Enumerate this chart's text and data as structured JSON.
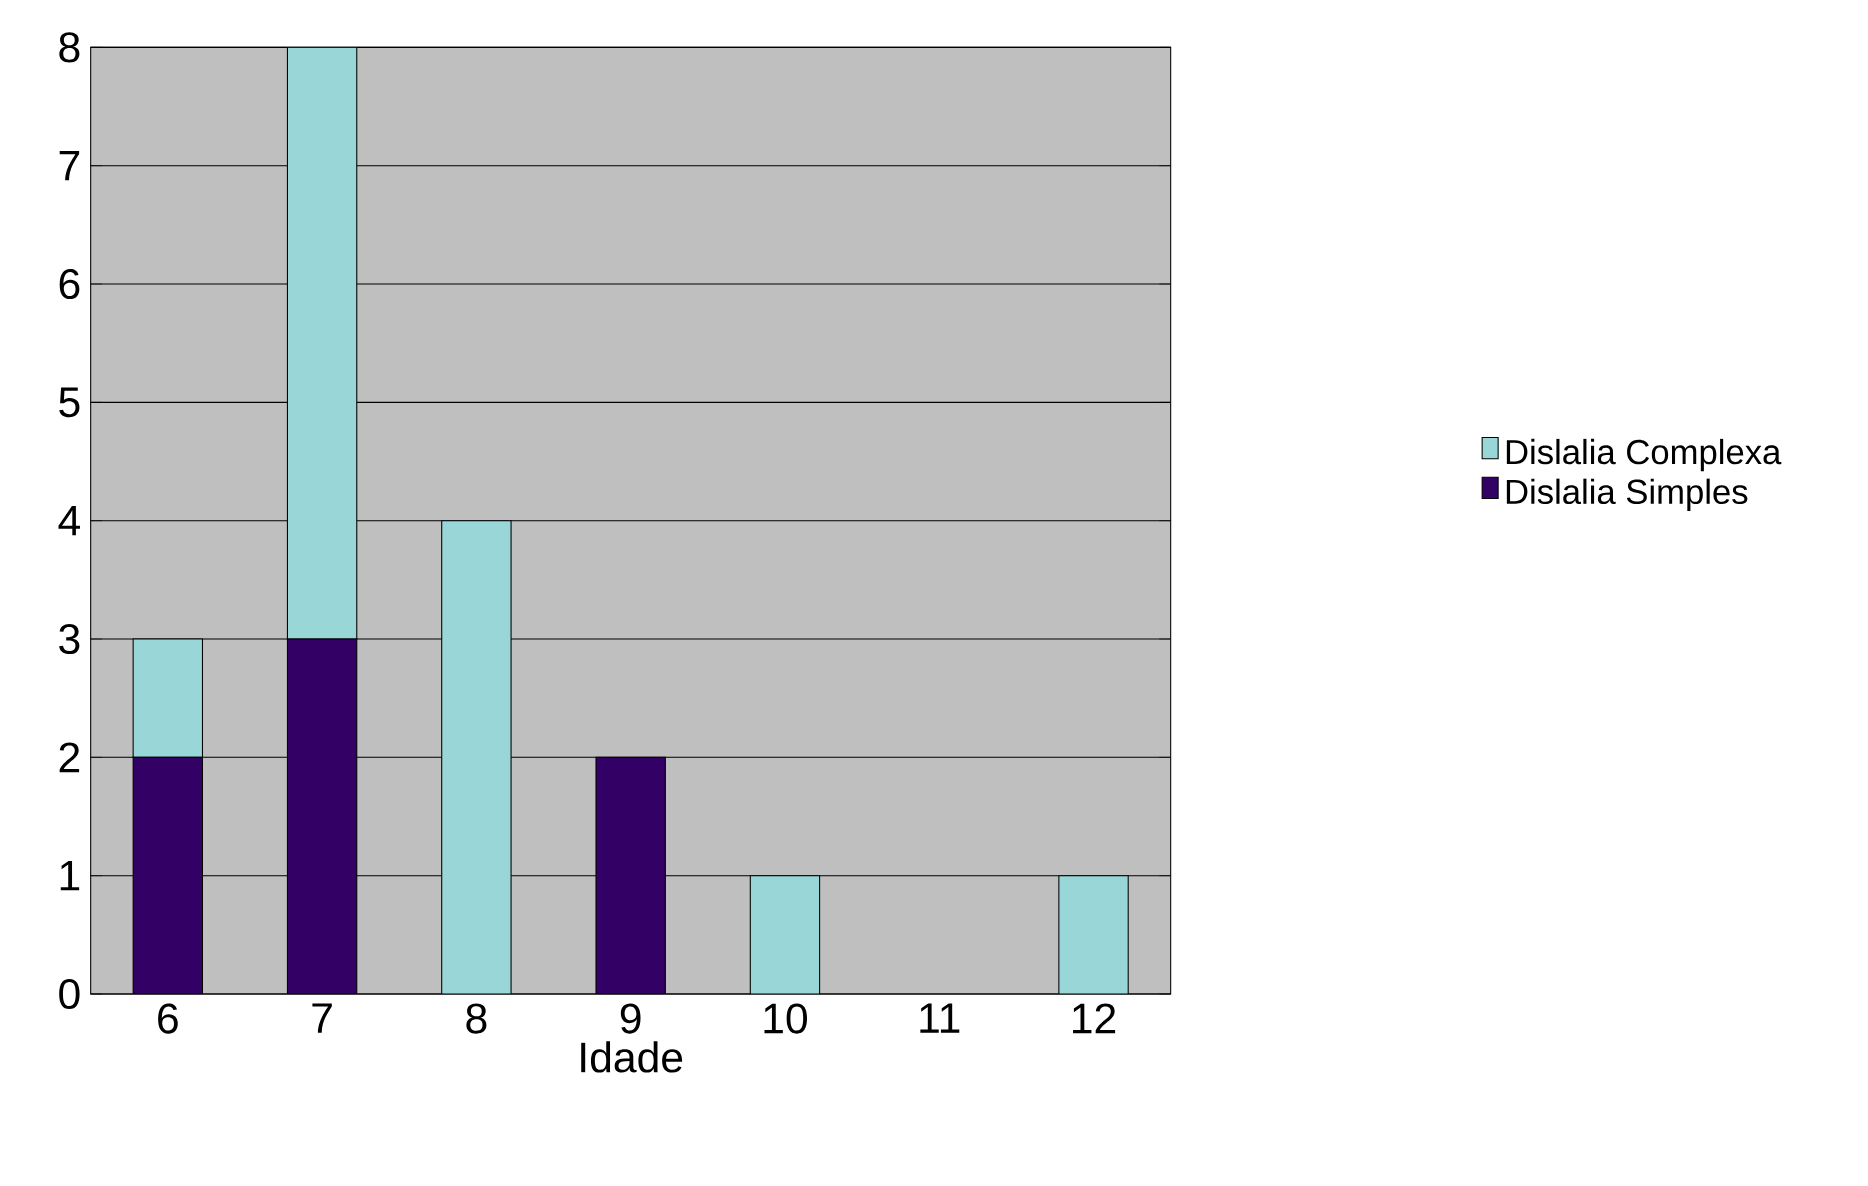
{
  "chart_data": {
    "type": "bar",
    "stacked": true,
    "xlabel": "Idade",
    "categories": [
      "6",
      "7",
      "8",
      "9",
      "10",
      "11",
      "12"
    ],
    "series": [
      {
        "name": "Dislalia Simples",
        "color": "#330066",
        "values": [
          2,
          3,
          0,
          2,
          0,
          0,
          0
        ]
      },
      {
        "name": "Dislalia Complexa",
        "color": "#99d6d8",
        "values": [
          1,
          5,
          4,
          0,
          1,
          0,
          1
        ]
      }
    ],
    "ylim": [
      0,
      8
    ],
    "yticks": [
      0,
      1,
      2,
      3,
      4,
      5,
      6,
      7,
      8
    ],
    "grid": "y",
    "legend": "right"
  }
}
